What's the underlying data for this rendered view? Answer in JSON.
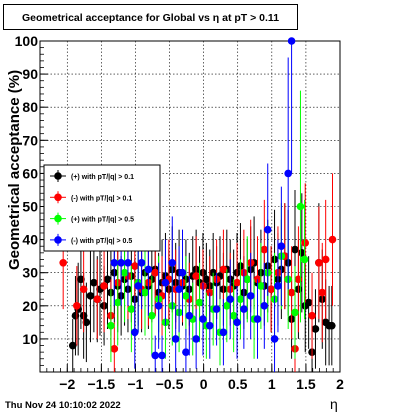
{
  "chart_data": {
    "type": "scatter",
    "title": "Geometrical acceptance for Global vs  η at pT > 0.11",
    "xlabel": "η",
    "ylabel": "Geometrical acceptance (%)",
    "xlim": [
      -2.4,
      2.0
    ],
    "ylim": [
      0,
      100
    ],
    "x_ticks": [
      -2,
      -1.5,
      -1,
      -0.5,
      0,
      0.5,
      1,
      1.5,
      2
    ],
    "x_tick_labels": [
      "−2",
      "−1.5",
      "−1",
      "−0.5",
      "0",
      "0.5",
      "1",
      "1.5",
      "2"
    ],
    "y_ticks": [
      10,
      20,
      30,
      40,
      50,
      60,
      70,
      80,
      90,
      100
    ],
    "y_tick_labels": [
      "10",
      "20",
      "30",
      "40",
      "50",
      "60",
      "70",
      "80",
      "90",
      "100"
    ],
    "grid": true,
    "legend_position": "left-middle",
    "series": [
      {
        "name": "(+) with pT/|q| > 0.1",
        "color": "#000000",
        "points": [
          [
            -1.92,
            8,
            8
          ],
          [
            -1.88,
            17,
            12
          ],
          [
            -1.84,
            19,
            14
          ],
          [
            -1.8,
            28,
            15
          ],
          [
            -1.76,
            17,
            13
          ],
          [
            -1.72,
            15,
            12
          ],
          [
            -1.66,
            23,
            14
          ],
          [
            -1.61,
            27,
            15
          ],
          [
            -1.56,
            22,
            13
          ],
          [
            -1.52,
            25,
            14
          ],
          [
            -1.46,
            20,
            12
          ],
          [
            -1.41,
            28,
            15
          ],
          [
            -1.36,
            24,
            13
          ],
          [
            -1.31,
            30,
            15
          ],
          [
            -1.26,
            26,
            14
          ],
          [
            -1.21,
            23,
            12
          ],
          [
            -1.16,
            28,
            14
          ],
          [
            -1.11,
            25,
            13
          ],
          [
            -1.06,
            29,
            14
          ],
          [
            -1.01,
            22,
            12
          ],
          [
            -0.96,
            27,
            13
          ],
          [
            -0.91,
            24,
            12
          ],
          [
            -0.86,
            30,
            14
          ],
          [
            -0.81,
            26,
            13
          ],
          [
            -0.76,
            28,
            13
          ],
          [
            -0.71,
            31,
            14
          ],
          [
            -0.66,
            24,
            12
          ],
          [
            -0.61,
            27,
            13
          ],
          [
            -0.56,
            29,
            13
          ],
          [
            -0.51,
            25,
            12
          ],
          [
            -0.46,
            31,
            13
          ],
          [
            -0.41,
            27,
            12
          ],
          [
            -0.36,
            30,
            13
          ],
          [
            -0.31,
            26,
            12
          ],
          [
            -0.26,
            28,
            12
          ],
          [
            -0.21,
            25,
            11
          ],
          [
            -0.16,
            29,
            12
          ],
          [
            -0.11,
            31,
            12
          ],
          [
            -0.06,
            27,
            11
          ],
          [
            -0.01,
            30,
            12
          ],
          [
            0.04,
            28,
            11
          ],
          [
            0.09,
            26,
            11
          ],
          [
            0.14,
            30,
            12
          ],
          [
            0.19,
            27,
            11
          ],
          [
            0.24,
            29,
            12
          ],
          [
            0.29,
            25,
            11
          ],
          [
            0.34,
            31,
            12
          ],
          [
            0.39,
            28,
            12
          ],
          [
            0.44,
            26,
            11
          ],
          [
            0.49,
            30,
            12
          ],
          [
            0.54,
            32,
            13
          ],
          [
            0.59,
            24,
            11
          ],
          [
            0.64,
            28,
            12
          ],
          [
            0.69,
            31,
            13
          ],
          [
            0.74,
            33,
            14
          ],
          [
            0.79,
            27,
            12
          ],
          [
            0.84,
            30,
            13
          ],
          [
            0.89,
            26,
            12
          ],
          [
            0.94,
            32,
            14
          ],
          [
            0.99,
            25,
            13
          ],
          [
            1.04,
            34,
            15
          ],
          [
            1.09,
            28,
            14
          ],
          [
            1.14,
            31,
            15
          ],
          [
            1.19,
            35,
            16
          ],
          [
            1.24,
            33,
            16
          ],
          [
            1.29,
            16,
            12
          ],
          [
            1.34,
            37,
            18
          ],
          [
            1.39,
            25,
            15
          ],
          [
            1.44,
            36,
            18
          ],
          [
            1.49,
            20,
            14
          ],
          [
            1.54,
            21,
            14
          ],
          [
            1.59,
            6,
            8
          ],
          [
            1.64,
            13,
            12
          ],
          [
            1.69,
            33,
            18
          ],
          [
            1.74,
            22,
            15
          ],
          [
            1.79,
            15,
            13
          ],
          [
            1.84,
            14,
            12
          ],
          [
            1.88,
            14,
            12
          ]
        ]
      },
      {
        "name": "(-) with pT/|q| > 0.1",
        "color": "#ff0000",
        "points": [
          [
            -2.06,
            33,
            14
          ],
          [
            -1.86,
            20,
            12
          ],
          [
            -1.76,
            25,
            13
          ],
          [
            -1.56,
            22,
            12
          ],
          [
            -1.46,
            26,
            14
          ],
          [
            -1.36,
            17,
            11
          ],
          [
            -1.31,
            7,
            8
          ],
          [
            -1.26,
            27,
            13
          ],
          [
            -1.11,
            29,
            13
          ],
          [
            -1.01,
            32,
            14
          ],
          [
            -0.91,
            25,
            12
          ],
          [
            -0.81,
            27,
            13
          ],
          [
            -0.71,
            30,
            13
          ],
          [
            -0.61,
            23,
            12
          ],
          [
            -0.51,
            28,
            12
          ],
          [
            -0.41,
            25,
            12
          ],
          [
            -0.31,
            27,
            12
          ],
          [
            -0.21,
            22,
            11
          ],
          [
            -0.11,
            29,
            12
          ],
          [
            -0.01,
            26,
            11
          ],
          [
            0.09,
            24,
            11
          ],
          [
            0.19,
            28,
            12
          ],
          [
            0.29,
            31,
            12
          ],
          [
            0.39,
            25,
            11
          ],
          [
            0.49,
            27,
            12
          ],
          [
            0.59,
            30,
            13
          ],
          [
            0.69,
            33,
            13
          ],
          [
            0.79,
            28,
            13
          ],
          [
            0.89,
            37,
            15
          ],
          [
            0.99,
            25,
            13
          ],
          [
            1.09,
            30,
            14
          ],
          [
            1.19,
            35,
            16
          ],
          [
            1.29,
            24,
            14
          ],
          [
            1.34,
            7,
            8
          ],
          [
            1.39,
            28,
            16
          ],
          [
            1.49,
            39,
            18
          ],
          [
            1.59,
            17,
            13
          ],
          [
            1.69,
            33,
            17
          ],
          [
            1.74,
            24,
            15
          ],
          [
            1.79,
            34,
            18
          ],
          [
            1.89,
            40,
            20
          ]
        ]
      },
      {
        "name": "(+) with pT/|q| > 0.5",
        "color": "#00ff00",
        "points": [
          [
            -1.36,
            14,
            11
          ],
          [
            -1.26,
            21,
            13
          ],
          [
            -1.16,
            30,
            15
          ],
          [
            -1.06,
            19,
            13
          ],
          [
            -0.96,
            27,
            15
          ],
          [
            -0.86,
            24,
            13
          ],
          [
            -0.76,
            17,
            12
          ],
          [
            -0.66,
            22,
            13
          ],
          [
            -0.56,
            15,
            11
          ],
          [
            -0.46,
            20,
            12
          ],
          [
            -0.36,
            18,
            12
          ],
          [
            -0.26,
            23,
            12
          ],
          [
            -0.16,
            16,
            11
          ],
          [
            -0.06,
            21,
            12
          ],
          [
            0.04,
            14,
            10
          ],
          [
            0.14,
            19,
            11
          ],
          [
            0.24,
            12,
            10
          ],
          [
            0.34,
            20,
            11
          ],
          [
            0.44,
            17,
            11
          ],
          [
            0.54,
            22,
            12
          ],
          [
            0.64,
            28,
            13
          ],
          [
            0.74,
            16,
            12
          ],
          [
            0.84,
            26,
            13
          ],
          [
            0.94,
            30,
            15
          ],
          [
            1.04,
            22,
            14
          ],
          [
            1.14,
            35,
            16
          ],
          [
            1.24,
            28,
            15
          ],
          [
            1.34,
            18,
            14
          ],
          [
            1.42,
            50,
            35
          ],
          [
            1.48,
            34,
            18
          ]
        ]
      },
      {
        "name": "(-) with pT/|q| > 0.5",
        "color": "#0000ff",
        "points": [
          [
            -1.31,
            33,
            13
          ],
          [
            -1.21,
            33,
            13
          ],
          [
            -1.11,
            33,
            13
          ],
          [
            -1.01,
            12,
            11
          ],
          [
            -0.96,
            26,
            14
          ],
          [
            -0.91,
            33,
            14
          ],
          [
            -0.81,
            31,
            14
          ],
          [
            -0.71,
            5,
            6
          ],
          [
            -0.66,
            20,
            13
          ],
          [
            -0.61,
            5,
            6
          ],
          [
            -0.56,
            27,
            13
          ],
          [
            -0.46,
            33,
            14
          ],
          [
            -0.41,
            10,
            10
          ],
          [
            -0.36,
            25,
            13
          ],
          [
            -0.31,
            30,
            13
          ],
          [
            -0.26,
            6,
            7
          ],
          [
            -0.21,
            17,
            12
          ],
          [
            -0.11,
            10,
            9
          ],
          [
            -0.01,
            16,
            11
          ],
          [
            0.09,
            14,
            10
          ],
          [
            0.19,
            19,
            11
          ],
          [
            0.29,
            12,
            10
          ],
          [
            0.39,
            22,
            12
          ],
          [
            0.49,
            15,
            11
          ],
          [
            0.59,
            19,
            12
          ],
          [
            0.69,
            23,
            13
          ],
          [
            0.79,
            16,
            12
          ],
          [
            0.89,
            20,
            13
          ],
          [
            0.94,
            43,
            20
          ],
          [
            1.04,
            10,
            13
          ],
          [
            1.09,
            26,
            14
          ],
          [
            1.14,
            38,
            18
          ],
          [
            1.24,
            60,
            35
          ],
          [
            1.29,
            100,
            40
          ]
        ]
      }
    ]
  },
  "footer": {
    "timestamp": "Thu Nov 24 10:10:02 2022"
  }
}
